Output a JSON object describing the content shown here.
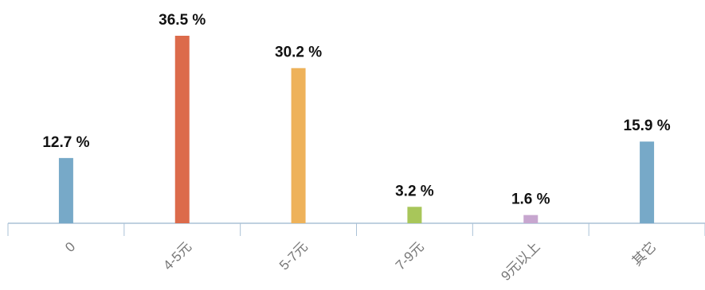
{
  "chart_data": {
    "type": "bar",
    "title": "",
    "xlabel": "",
    "ylabel": "",
    "categories": [
      "0",
      "4-5元",
      "5-7元",
      "7-9元",
      "9元以上",
      "其它"
    ],
    "values": [
      12.7,
      36.5,
      30.2,
      3.2,
      1.6,
      15.9
    ],
    "value_labels": [
      "12.7 %",
      "36.5 %",
      "30.2 %",
      "3.2 %",
      "1.6 %",
      "15.9 %"
    ],
    "unit": "%",
    "ylim": [
      0,
      40
    ],
    "grid": false,
    "legend": "none",
    "bar_colors": [
      "#77a9c8",
      "#dc6b4b",
      "#eeb25a",
      "#a8c65a",
      "#c7a6cf",
      "#77a9c8"
    ],
    "axis_color": "#aac1d6"
  }
}
